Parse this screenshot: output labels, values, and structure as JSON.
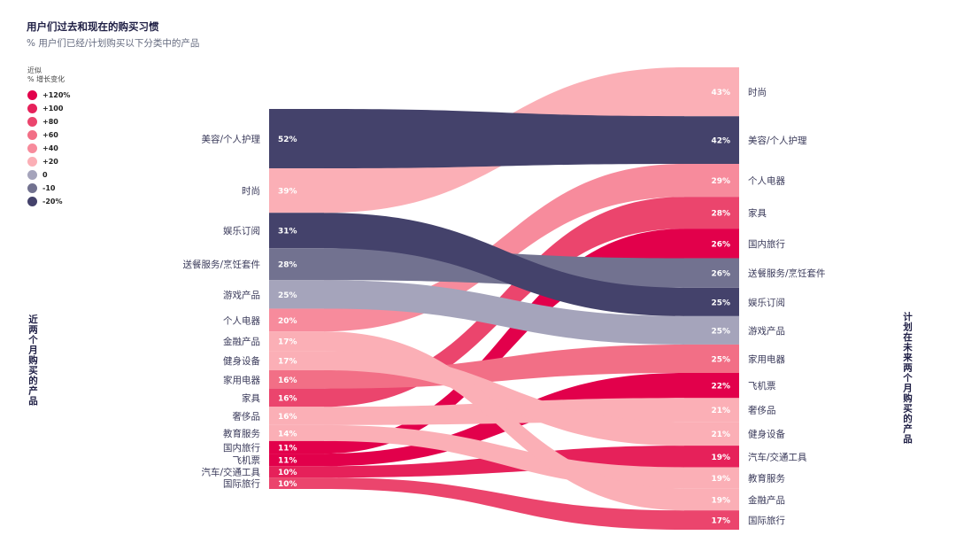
{
  "chart_data": {
    "type": "sankey",
    "title": "用户们过去和现在的购买习惯",
    "subtitle": "% 用户们已经/计划购买以下分类中的产品",
    "legend_title": "近似\n% 增长变化",
    "legend": [
      {
        "label": "+120%",
        "color": "#e2004b"
      },
      {
        "label": "+100",
        "color": "#e6215a"
      },
      {
        "label": "+80",
        "color": "#eb456d"
      },
      {
        "label": "+60",
        "color": "#f26f86"
      },
      {
        "label": "+40",
        "color": "#f78b9c"
      },
      {
        "label": "+20",
        "color": "#fbafb6"
      },
      {
        "label": "0",
        "color": "#a5a4bb"
      },
      {
        "label": "-10",
        "color": "#727290"
      },
      {
        "label": "-20%",
        "color": "#44426b"
      }
    ],
    "left_axis_label": "近两个月购买的产品",
    "right_axis_label": "计划在未来两个月购买的产品",
    "flows": [
      {
        "name": "美容/个人护理",
        "before": 52,
        "after": 42,
        "before_label": "52%",
        "after_label": "42%",
        "color": "#44426b"
      },
      {
        "name": "时尚",
        "before": 39,
        "after": 43,
        "before_label": "39%",
        "after_label": "43%",
        "color": "#fbafb6"
      },
      {
        "name": "娱乐订阅",
        "before": 31,
        "after": 25,
        "before_label": "31%",
        "after_label": "25%",
        "color": "#44426b"
      },
      {
        "name": "送餐服务/烹饪套件",
        "before": 28,
        "after": 26,
        "before_label": "28%",
        "after_label": "26%",
        "color": "#727290"
      },
      {
        "name": "游戏产品",
        "before": 25,
        "after": 25,
        "before_label": "25%",
        "after_label": "25%",
        "color": "#a5a4bb"
      },
      {
        "name": "个人电器",
        "before": 20,
        "after": 29,
        "before_label": "20%",
        "after_label": "29%",
        "color": "#f78b9c"
      },
      {
        "name": "金融产品",
        "before": 17,
        "after": 19,
        "before_label": "17%",
        "after_label": "19%",
        "color": "#fbafb6"
      },
      {
        "name": "健身设备",
        "before": 17,
        "after": 21,
        "before_label": "17%",
        "after_label": "21%",
        "color": "#fbafb6"
      },
      {
        "name": "家用电器",
        "before": 16,
        "after": 25,
        "before_label": "16%",
        "after_label": "25%",
        "color": "#f26f86"
      },
      {
        "name": "家具",
        "before": 16,
        "after": 28,
        "before_label": "16%",
        "after_label": "28%",
        "color": "#eb456d"
      },
      {
        "name": "奢侈品",
        "before": 16,
        "after": 21,
        "before_label": "16%",
        "after_label": "21%",
        "color": "#fbafb6"
      },
      {
        "name": "教育服务",
        "before": 14,
        "after": 19,
        "before_label": "14%",
        "after_label": "19%",
        "color": "#fbafb6"
      },
      {
        "name": "国内旅行",
        "before": 11,
        "after": 26,
        "before_label": "11%",
        "after_label": "26%",
        "color": "#e2004b"
      },
      {
        "name": "飞机票",
        "before": 11,
        "after": 22,
        "before_label": "11%",
        "after_label": "22%",
        "color": "#e2004b"
      },
      {
        "name": "汽车/交通工具",
        "before": 10,
        "after": 19,
        "before_label": "10%",
        "after_label": "19%",
        "color": "#e6215a"
      },
      {
        "name": "国际旅行",
        "before": 10,
        "after": 17,
        "before_label": "10%",
        "after_label": "17%",
        "color": "#eb456d"
      }
    ],
    "right_order": [
      "时尚",
      "美容/个人护理",
      "个人电器",
      "家具",
      "国内旅行",
      "送餐服务/烹饪套件",
      "娱乐订阅",
      "游戏产品",
      "家用电器",
      "飞机票",
      "奢侈品",
      "健身设备",
      "汽车/交通工具",
      "教育服务",
      "金融产品",
      "国际旅行"
    ]
  }
}
